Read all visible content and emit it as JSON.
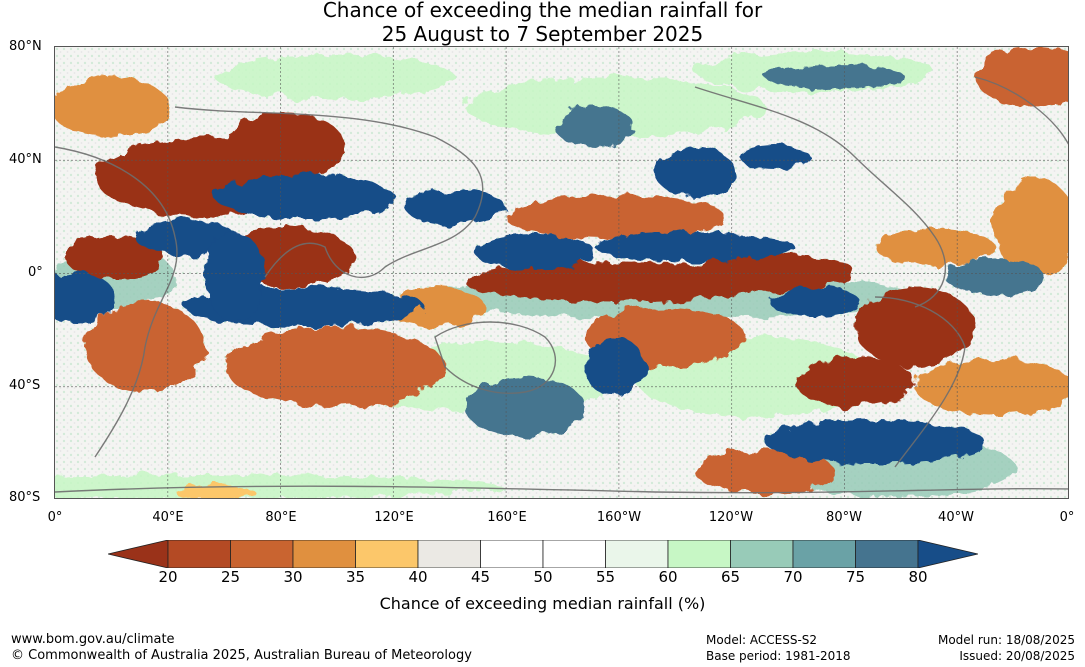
{
  "title": {
    "line1": "Chance of exceeding the median rainfall for",
    "line2": "25 August to 7 September 2025"
  },
  "map": {
    "lat_labels": [
      "80°N",
      "40°N",
      "0°",
      "40°S",
      "80°S"
    ],
    "lon_labels": [
      "0°",
      "40°E",
      "80°E",
      "120°E",
      "160°E",
      "160°W",
      "120°W",
      "80°W",
      "40°W",
      "0°"
    ],
    "projection": "equirectangular",
    "gridlines": true,
    "coastlines": true
  },
  "legend": {
    "ticks": [
      "20",
      "25",
      "30",
      "35",
      "40",
      "45",
      "50",
      "55",
      "60",
      "65",
      "70",
      "75",
      "80"
    ],
    "colors": [
      "#9a3219",
      "#b44a24",
      "#c96430",
      "#e0903f",
      "#fcc76a",
      "#ebe9e4",
      "#ffffff",
      "#ffffff",
      "#eaf6ea",
      "#c7f7c5",
      "#98cbb8",
      "#6aa2a6",
      "#45748f",
      "#174d88"
    ],
    "label": "Chance of exceeding median rainfall (%)"
  },
  "footer": {
    "website": "www.bom.gov.au/climate",
    "copyright": "© Commonwealth of Australia 2025, Australian Bureau of Meteorology",
    "model": "Model: ACCESS-S2",
    "base_period": "Base period: 1981-2018",
    "model_run": "Model run: 18/08/2025",
    "issued": "Issued: 20/08/2025"
  }
}
